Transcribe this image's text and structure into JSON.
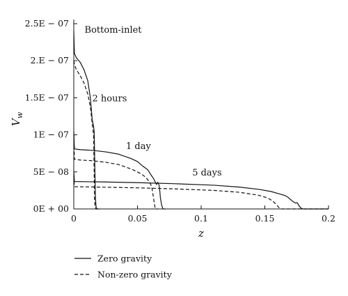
{
  "chart_data": {
    "type": "line",
    "title": "",
    "xlabel": "z",
    "ylabel": "V",
    "ylabel_subscript": "w",
    "xlim": [
      0,
      0.2
    ],
    "ylim": [
      0,
      2.5e-07
    ],
    "x_ticks": [
      {
        "value": 0,
        "label": "0"
      },
      {
        "value": 0.05,
        "label": "0.05"
      },
      {
        "value": 0.1,
        "label": "0.1"
      },
      {
        "value": 0.15,
        "label": "0.15"
      },
      {
        "value": 0.2,
        "label": "0.2"
      }
    ],
    "y_ticks": [
      {
        "value": 0,
        "label": "0E + 00"
      },
      {
        "value": 5e-08,
        "label": "5E − 08"
      },
      {
        "value": 1e-07,
        "label": "1E − 07"
      },
      {
        "value": 1.5e-07,
        "label": "1.5E − 07"
      },
      {
        "value": 2e-07,
        "label": "2.E − 07"
      },
      {
        "value": 2.5e-07,
        "label": "2.5E − 07"
      }
    ],
    "grid": false,
    "legend_placement": "bottom-left",
    "annotations": [
      {
        "text": "Bottom-inlet",
        "x": 0.0085,
        "y": 2.38e-07
      },
      {
        "text": "2 hours",
        "x": 0.0145,
        "y": 1.45e-07
      },
      {
        "text": "1 day",
        "x": 0.041,
        "y": 8.1e-08
      },
      {
        "text": "5 days",
        "x": 0.093,
        "y": 4.5e-08
      }
    ],
    "series": [
      {
        "name": "Zero gravity",
        "time": "2 hours",
        "style": "solid",
        "x": [
          0,
          0.0005,
          0.002,
          0.005,
          0.008,
          0.011,
          0.013,
          0.0145,
          0.0155,
          0.016,
          0.0165,
          0.017,
          0.0175,
          0.018,
          0.019,
          0.02
        ],
        "y": [
          2.4e-07,
          2.1e-07,
          2.04e-07,
          1.98e-07,
          1.88e-07,
          1.73e-07,
          1.5e-07,
          1.2e-07,
          1.12e-07,
          1.05e-07,
          6e-08,
          1.5e-08,
          3e-09,
          0,
          0,
          0
        ]
      },
      {
        "name": "Non-zero gravity",
        "time": "2 hours",
        "style": "dashed",
        "x": [
          0,
          0.0005,
          0.002,
          0.005,
          0.008,
          0.011,
          0.013,
          0.0145,
          0.0152,
          0.0156,
          0.016,
          0.0163,
          0.0168,
          0.0175,
          0.02
        ],
        "y": [
          2e-07,
          1.95e-07,
          1.88e-07,
          1.8e-07,
          1.7e-07,
          1.55e-07,
          1.38e-07,
          1.15e-07,
          1.05e-07,
          1e-07,
          5e-08,
          1.2e-08,
          2e-09,
          0,
          0
        ]
      },
      {
        "name": "Zero gravity",
        "time": "1 day",
        "style": "solid",
        "x": [
          0,
          0.0005,
          0.005,
          0.015,
          0.025,
          0.035,
          0.045,
          0.05,
          0.054,
          0.058,
          0.061,
          0.063,
          0.064,
          0.065,
          0.066,
          0.067,
          0.0675,
          0.068,
          0.069,
          0.07,
          0.072
        ],
        "y": [
          1.05e-07,
          8.1e-08,
          8e-08,
          7.9e-08,
          7.7e-08,
          7.4e-08,
          6.8e-08,
          6.4e-08,
          5.8e-08,
          5.3e-08,
          4.5e-08,
          4e-08,
          3.6e-08,
          3.3e-08,
          3.6e-08,
          3.2e-08,
          2.5e-08,
          1.5e-08,
          5e-09,
          0,
          0
        ]
      },
      {
        "name": "Non-zero gravity",
        "time": "1 day",
        "style": "dashed",
        "x": [
          0,
          0.0005,
          0.005,
          0.015,
          0.025,
          0.035,
          0.045,
          0.05,
          0.054,
          0.057,
          0.059,
          0.0605,
          0.0615,
          0.0625,
          0.0635,
          0.064,
          0.066
        ],
        "y": [
          1e-07,
          6.7e-08,
          6.6e-08,
          6.5e-08,
          6.3e-08,
          6e-08,
          5.4e-08,
          5e-08,
          4.6e-08,
          4.2e-08,
          3.7e-08,
          3.3e-08,
          2.7e-08,
          1.6e-08,
          5e-09,
          0,
          0
        ]
      },
      {
        "name": "Zero gravity",
        "time": "5 days",
        "style": "solid",
        "x": [
          0,
          0.0005,
          0.02,
          0.05,
          0.08,
          0.11,
          0.13,
          0.145,
          0.155,
          0.162,
          0.166,
          0.168,
          0.17,
          0.172,
          0.174,
          0.1755,
          0.1765,
          0.1775,
          0.1785,
          0.18,
          0.2
        ],
        "y": [
          5.1e-08,
          3.7e-08,
          3.65e-08,
          3.55e-08,
          3.4e-08,
          3.2e-08,
          2.95e-08,
          2.65e-08,
          2.35e-08,
          2e-08,
          1.8e-08,
          1.6e-08,
          1.3e-08,
          1e-08,
          8e-09,
          8.5e-09,
          5e-09,
          3e-09,
          1e-09,
          0,
          0
        ]
      },
      {
        "name": "Non-zero gravity",
        "time": "5 days",
        "style": "dashed",
        "x": [
          0,
          0.0005,
          0.02,
          0.05,
          0.08,
          0.11,
          0.13,
          0.145,
          0.152,
          0.156,
          0.159,
          0.161,
          0.163,
          0.165,
          0.2
        ],
        "y": [
          4.5e-08,
          3e-08,
          2.95e-08,
          2.85e-08,
          2.7e-08,
          2.5e-08,
          2.25e-08,
          1.85e-08,
          1.5e-08,
          1.1e-08,
          6e-09,
          2e-09,
          0,
          0,
          0
        ]
      }
    ],
    "legend": [
      {
        "label": "Zero gravity",
        "style": "solid"
      },
      {
        "label": "Non-zero gravity",
        "style": "dashed"
      }
    ],
    "colors": {
      "line": "#111111",
      "background": "#ffffff"
    }
  }
}
